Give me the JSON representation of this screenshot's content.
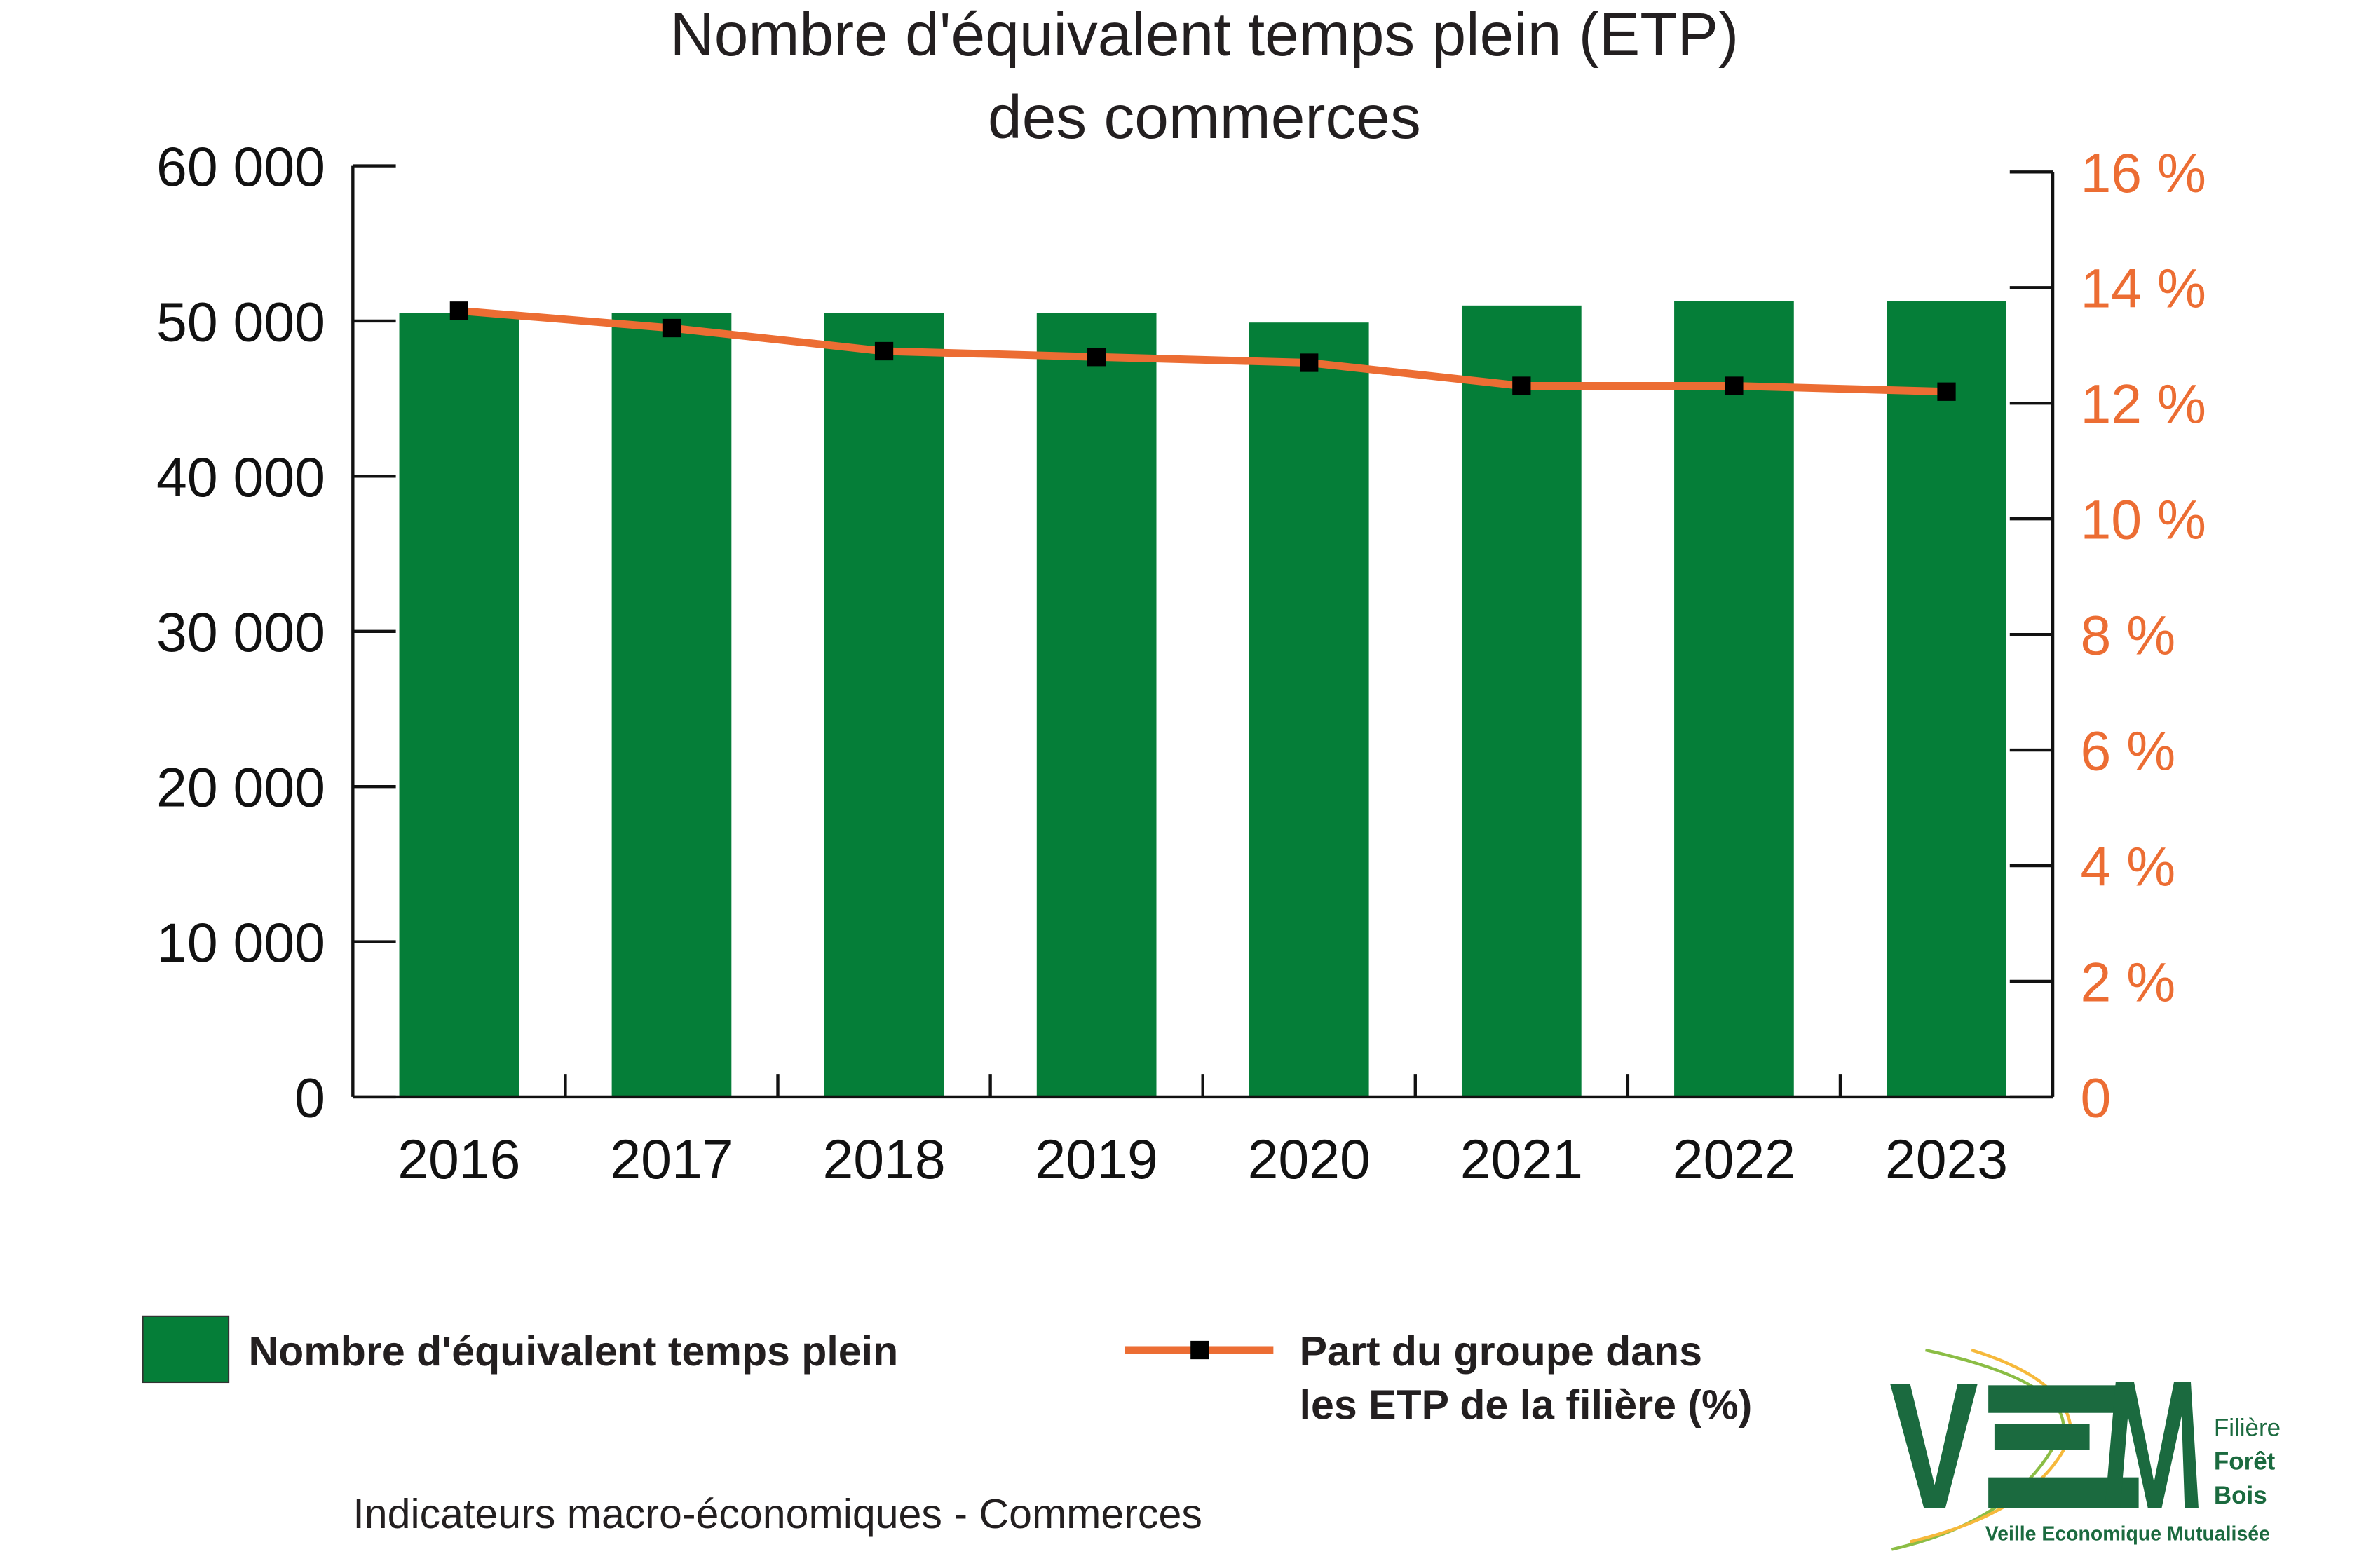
{
  "chart_data": {
    "type": "bar+line",
    "title": [
      "Nombre d'équivalent temps plein (ETP)",
      "des commerces"
    ],
    "categories": [
      "2016",
      "2017",
      "2018",
      "2019",
      "2020",
      "2021",
      "2022",
      "2023"
    ],
    "series": [
      {
        "name": "Nombre d'équivalent temps plein",
        "type": "bar",
        "axis": "left",
        "color": "#057e38",
        "values": [
          50500,
          50500,
          50500,
          50500,
          49900,
          51000,
          51300,
          51300
        ]
      },
      {
        "name": "Part du groupe dans les ETP de la filière  (%)",
        "type": "line",
        "axis": "right",
        "color": "#ec6d33",
        "marker_color": "#000000",
        "values": [
          13.6,
          13.3,
          12.9,
          12.8,
          12.7,
          12.3,
          12.3,
          12.2
        ]
      }
    ],
    "left_axis": {
      "ylim": [
        0,
        60000
      ],
      "ticks": [
        0,
        10000,
        20000,
        30000,
        40000,
        50000,
        60000
      ],
      "tick_labels": [
        "0",
        "10 000",
        "20 000",
        "30 000",
        "40 000",
        "50 000",
        "60 000"
      ]
    },
    "right_axis": {
      "ylim": [
        0,
        16
      ],
      "ticks": [
        0,
        2,
        4,
        6,
        8,
        10,
        12,
        14,
        16
      ],
      "tick_labels": [
        "0",
        "2 %",
        "4 %",
        "6 %",
        "8 %",
        "10 %",
        "12 %",
        "14 %",
        "16 %"
      ],
      "color": "#ec6d33"
    },
    "legend": {
      "placement": "bottom",
      "entries": [
        "Nombre d'équivalent temps plein",
        "Part du groupe dans",
        "les ETP de la filière  (%)"
      ]
    },
    "grid": false
  },
  "footer": "Indicateurs macro-économiques - Commerces",
  "logo": {
    "letters": "VEM",
    "line1": "Filière",
    "line2": "Forêt",
    "line3": "Bois",
    "tagline": "Veille Economique Mutualisée"
  }
}
